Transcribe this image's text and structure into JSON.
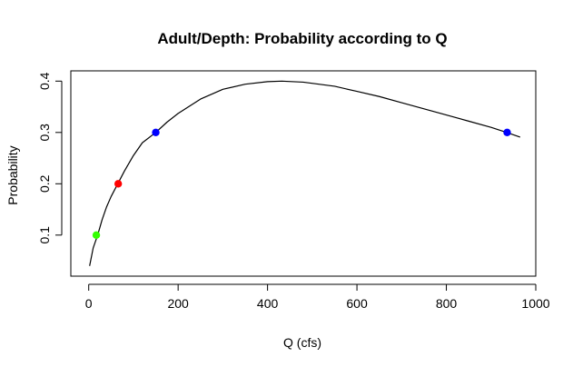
{
  "chart_data": {
    "type": "line",
    "title": "Adult/Depth: Probability according to Q",
    "xlabel": "Q (cfs)",
    "ylabel": "Probability",
    "xlim": [
      -40,
      1000
    ],
    "ylim": [
      0.02,
      0.42
    ],
    "x_ticks": [
      0,
      200,
      400,
      600,
      800,
      1000
    ],
    "x_tick_labels": [
      "0",
      "200",
      "400",
      "600",
      "800",
      "1000"
    ],
    "y_ticks": [
      0.1,
      0.2,
      0.3,
      0.4
    ],
    "y_tick_labels": [
      "0.1",
      "0.2",
      "0.3",
      "0.4"
    ],
    "grid": false,
    "series": [
      {
        "color": "#000000",
        "x": [
          2,
          10,
          20,
          30,
          40,
          50,
          65,
          80,
          100,
          120,
          150,
          175,
          200,
          250,
          300,
          350,
          400,
          432,
          480,
          550,
          600,
          650,
          700,
          750,
          800,
          850,
          900,
          935,
          965
        ],
        "y": [
          0.04,
          0.075,
          0.1,
          0.13,
          0.155,
          0.175,
          0.2,
          0.225,
          0.255,
          0.28,
          0.3,
          0.32,
          0.337,
          0.365,
          0.384,
          0.394,
          0.399,
          0.4,
          0.398,
          0.39,
          0.38,
          0.37,
          0.358,
          0.346,
          0.334,
          0.322,
          0.31,
          0.3,
          0.291
        ]
      }
    ],
    "points": [
      {
        "x": 17,
        "y": 0.1,
        "color": "#33ff00"
      },
      {
        "x": 66,
        "y": 0.2,
        "color": "#ff0000"
      },
      {
        "x": 150,
        "y": 0.3,
        "color": "#0000ff"
      },
      {
        "x": 936,
        "y": 0.3,
        "color": "#0000ff"
      }
    ]
  }
}
